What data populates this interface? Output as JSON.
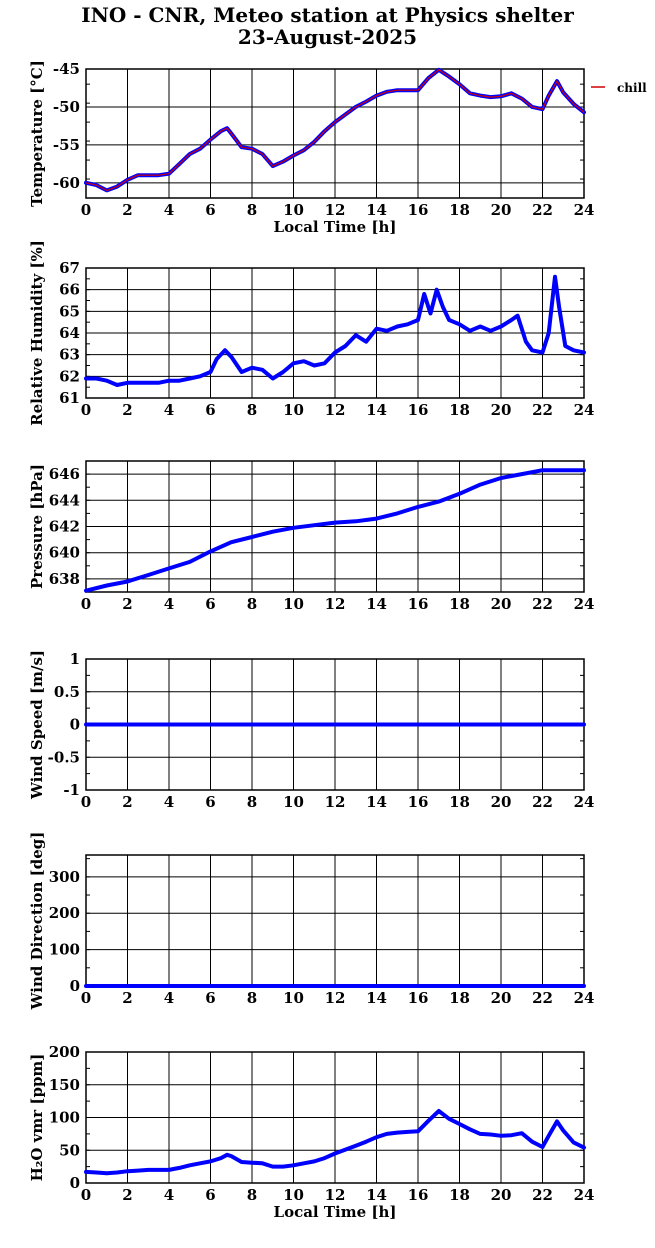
{
  "title": {
    "line1": "INO - CNR, Meteo station at Physics shelter",
    "line2": "23-August-2025"
  },
  "colors": {
    "primary": "#0000ff",
    "secondary": "#d00000",
    "grid": "#000000"
  },
  "chart_data": [
    {
      "type": "line",
      "xlabel": "Local Time [h]",
      "ylabel": "Temperature [°C]",
      "xlim": [
        0,
        24
      ],
      "ylim": [
        -62,
        -45
      ],
      "xticks": [
        0,
        2,
        4,
        6,
        8,
        10,
        12,
        14,
        16,
        18,
        20,
        22,
        24
      ],
      "yticks": [
        -60,
        -55,
        -50,
        -45
      ],
      "legend": {
        "label": "chill",
        "position": "top-right outside"
      },
      "x": [
        0,
        0.5,
        1,
        1.5,
        2,
        2.5,
        3,
        3.5,
        4,
        4.5,
        5,
        5.5,
        6,
        6.5,
        6.8,
        7,
        7.5,
        8,
        8.5,
        9,
        9.5,
        10,
        10.5,
        11,
        11.5,
        12,
        12.5,
        13,
        13.5,
        14,
        14.5,
        15,
        15.5,
        16,
        16.5,
        17,
        17.5,
        18,
        18.5,
        19,
        19.5,
        20,
        20.5,
        21,
        21.5,
        22,
        22.3,
        22.7,
        23,
        23.5,
        24
      ],
      "series": [
        {
          "name": "",
          "color": "#0000ff",
          "values": [
            -60,
            -60.3,
            -61,
            -60.5,
            -59.6,
            -59,
            -59,
            -59,
            -58.8,
            -57.5,
            -56.2,
            -55.5,
            -54.3,
            -53.2,
            -52.8,
            -53.5,
            -55.3,
            -55.5,
            -56.2,
            -57.8,
            -57.2,
            -56.4,
            -55.7,
            -54.6,
            -53.2,
            -52,
            -51,
            -50,
            -49.3,
            -48.5,
            -48,
            -47.8,
            -47.8,
            -47.8,
            -46.2,
            -45.1,
            -46,
            -47,
            -48.2,
            -48.5,
            -48.7,
            -48.6,
            -48.2,
            -48.9,
            -50,
            -50.3,
            -48.5,
            -46.6,
            -48.1,
            -49.6,
            -50.7
          ]
        },
        {
          "name": "chill",
          "color": "#d00000",
          "values": [
            -60,
            -60.3,
            -61,
            -60.5,
            -59.6,
            -59,
            -59,
            -59,
            -58.8,
            -57.5,
            -56.2,
            -55.5,
            -54.3,
            -53.2,
            -52.8,
            -53.5,
            -55.3,
            -55.5,
            -56.2,
            -57.8,
            -57.2,
            -56.4,
            -55.7,
            -54.6,
            -53.2,
            -52,
            -51,
            -50,
            -49.3,
            -48.5,
            -48,
            -47.8,
            -47.8,
            -47.8,
            -46.2,
            -45.1,
            -46,
            -47,
            -48.2,
            -48.5,
            -48.7,
            -48.6,
            -48.2,
            -48.9,
            -50,
            -50.3,
            -48.5,
            -46.6,
            -48.1,
            -49.6,
            -50.7
          ]
        }
      ]
    },
    {
      "type": "line",
      "xlabel": "",
      "ylabel": "Relative Humidity [%]",
      "xlim": [
        0,
        24
      ],
      "ylim": [
        61,
        67
      ],
      "xticks": [
        0,
        2,
        4,
        6,
        8,
        10,
        12,
        14,
        16,
        18,
        20,
        22,
        24
      ],
      "yticks": [
        61,
        62,
        63,
        64,
        65,
        66,
        67
      ],
      "x": [
        0,
        0.5,
        1,
        1.5,
        2,
        2.5,
        3,
        3.5,
        4,
        4.5,
        5,
        5.5,
        6,
        6.3,
        6.7,
        7,
        7.5,
        8,
        8.5,
        9,
        9.5,
        10,
        10.5,
        11,
        11.5,
        12,
        12.5,
        13,
        13.5,
        14,
        14.5,
        15,
        15.5,
        16,
        16.3,
        16.6,
        16.9,
        17.2,
        17.5,
        18,
        18.5,
        19,
        19.5,
        20,
        20.5,
        20.8,
        21.2,
        21.5,
        22,
        22.3,
        22.6,
        22.8,
        23.1,
        23.5,
        24
      ],
      "series": [
        {
          "name": "",
          "color": "#0000ff",
          "values": [
            61.9,
            61.9,
            61.8,
            61.6,
            61.7,
            61.7,
            61.7,
            61.7,
            61.8,
            61.8,
            61.9,
            62,
            62.2,
            62.8,
            63.2,
            62.9,
            62.2,
            62.4,
            62.3,
            61.9,
            62.2,
            62.6,
            62.7,
            62.5,
            62.6,
            63.1,
            63.4,
            63.9,
            63.6,
            64.2,
            64.1,
            64.3,
            64.4,
            64.6,
            65.8,
            64.9,
            66,
            65.2,
            64.6,
            64.4,
            64.1,
            64.3,
            64.1,
            64.3,
            64.6,
            64.8,
            63.6,
            63.2,
            63.1,
            64,
            66.6,
            65.2,
            63.4,
            63.2,
            63.1
          ]
        }
      ]
    },
    {
      "type": "line",
      "xlabel": "",
      "ylabel": "Pressure [hPa]",
      "xlim": [
        0,
        24
      ],
      "ylim": [
        637,
        647
      ],
      "xticks": [
        0,
        2,
        4,
        6,
        8,
        10,
        12,
        14,
        16,
        18,
        20,
        22,
        24
      ],
      "yticks": [
        638,
        640,
        642,
        644,
        646
      ],
      "x": [
        0,
        1,
        2,
        3,
        4,
        5,
        6,
        7,
        8,
        9,
        10,
        11,
        12,
        13,
        14,
        15,
        16,
        17,
        18,
        19,
        20,
        21,
        22,
        23,
        24
      ],
      "series": [
        {
          "name": "",
          "color": "#0000ff",
          "values": [
            637.1,
            637.5,
            637.8,
            638.3,
            638.8,
            639.3,
            640.1,
            640.8,
            641.2,
            641.6,
            641.9,
            642.1,
            642.3,
            642.4,
            642.6,
            643,
            643.5,
            643.9,
            644.5,
            645.2,
            645.7,
            646,
            646.3,
            646.3,
            646.3
          ]
        }
      ]
    },
    {
      "type": "line",
      "xlabel": "",
      "ylabel": "Wind Speed [m/s]",
      "xlim": [
        0,
        24
      ],
      "ylim": [
        -1,
        1
      ],
      "xticks": [
        0,
        2,
        4,
        6,
        8,
        10,
        12,
        14,
        16,
        18,
        20,
        22,
        24
      ],
      "yticks": [
        -1,
        -0.5,
        0,
        0.5,
        1
      ],
      "x": [
        0,
        24
      ],
      "series": [
        {
          "name": "",
          "color": "#0000ff",
          "values": [
            0,
            0
          ]
        }
      ]
    },
    {
      "type": "line",
      "xlabel": "",
      "ylabel": "Wind Direction [deg]",
      "xlim": [
        0,
        24
      ],
      "ylim": [
        0,
        360
      ],
      "xticks": [
        0,
        2,
        4,
        6,
        8,
        10,
        12,
        14,
        16,
        18,
        20,
        22,
        24
      ],
      "yticks": [
        0,
        100,
        200,
        300
      ],
      "x": [
        0,
        24
      ],
      "series": [
        {
          "name": "",
          "color": "#0000ff",
          "values": [
            0,
            0
          ]
        }
      ]
    },
    {
      "type": "line",
      "xlabel": "Local Time [h]",
      "ylabel": "H₂O vmr [ppm]",
      "xlim": [
        0,
        24
      ],
      "ylim": [
        0,
        200
      ],
      "xticks": [
        0,
        2,
        4,
        6,
        8,
        10,
        12,
        14,
        16,
        18,
        20,
        22,
        24
      ],
      "yticks": [
        0,
        50,
        100,
        150,
        200
      ],
      "x": [
        0,
        0.5,
        1,
        1.5,
        2,
        2.5,
        3,
        3.5,
        4,
        4.5,
        5,
        5.5,
        6,
        6.5,
        6.8,
        7,
        7.5,
        8,
        8.5,
        9,
        9.5,
        10,
        10.5,
        11,
        11.5,
        12,
        12.5,
        13,
        13.5,
        14,
        14.5,
        15,
        15.5,
        16,
        16.5,
        17,
        17.5,
        18,
        18.5,
        19,
        19.5,
        20,
        20.5,
        21,
        21.5,
        22,
        22.3,
        22.7,
        23,
        23.5,
        24
      ],
      "series": [
        {
          "name": "",
          "color": "#0000ff",
          "values": [
            17,
            16,
            15,
            16,
            18,
            19,
            20,
            20,
            20,
            23,
            27,
            30,
            33,
            38,
            43,
            41,
            32,
            31,
            30,
            25,
            25,
            27,
            30,
            33,
            38,
            45,
            51,
            57,
            63,
            70,
            75,
            77,
            78,
            79,
            95,
            110,
            98,
            90,
            82,
            75,
            74,
            72,
            73,
            76,
            63,
            55,
            72,
            94,
            80,
            62,
            54
          ]
        }
      ]
    }
  ]
}
